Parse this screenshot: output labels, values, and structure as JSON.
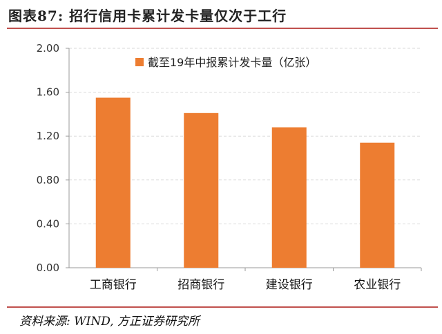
{
  "header": {
    "title": "图表87:   招行信用卡累计发卡量仅次于工行"
  },
  "footer": {
    "source": "资料来源: WIND, 方正证券研究所"
  },
  "chart_data": {
    "type": "bar",
    "categories": [
      "工商银行",
      "招商银行",
      "建设银行",
      "农业银行"
    ],
    "series": [
      {
        "name": "截至19年中报累计发卡量（亿张）",
        "values": [
          1.55,
          1.41,
          1.28,
          1.14
        ],
        "color": "#ed7d31"
      }
    ],
    "ylim": [
      0,
      2.0
    ],
    "yticks": [
      "0.00",
      "0.40",
      "0.80",
      "1.20",
      "1.60",
      "2.00"
    ],
    "grid": true,
    "legend": "top-right"
  }
}
